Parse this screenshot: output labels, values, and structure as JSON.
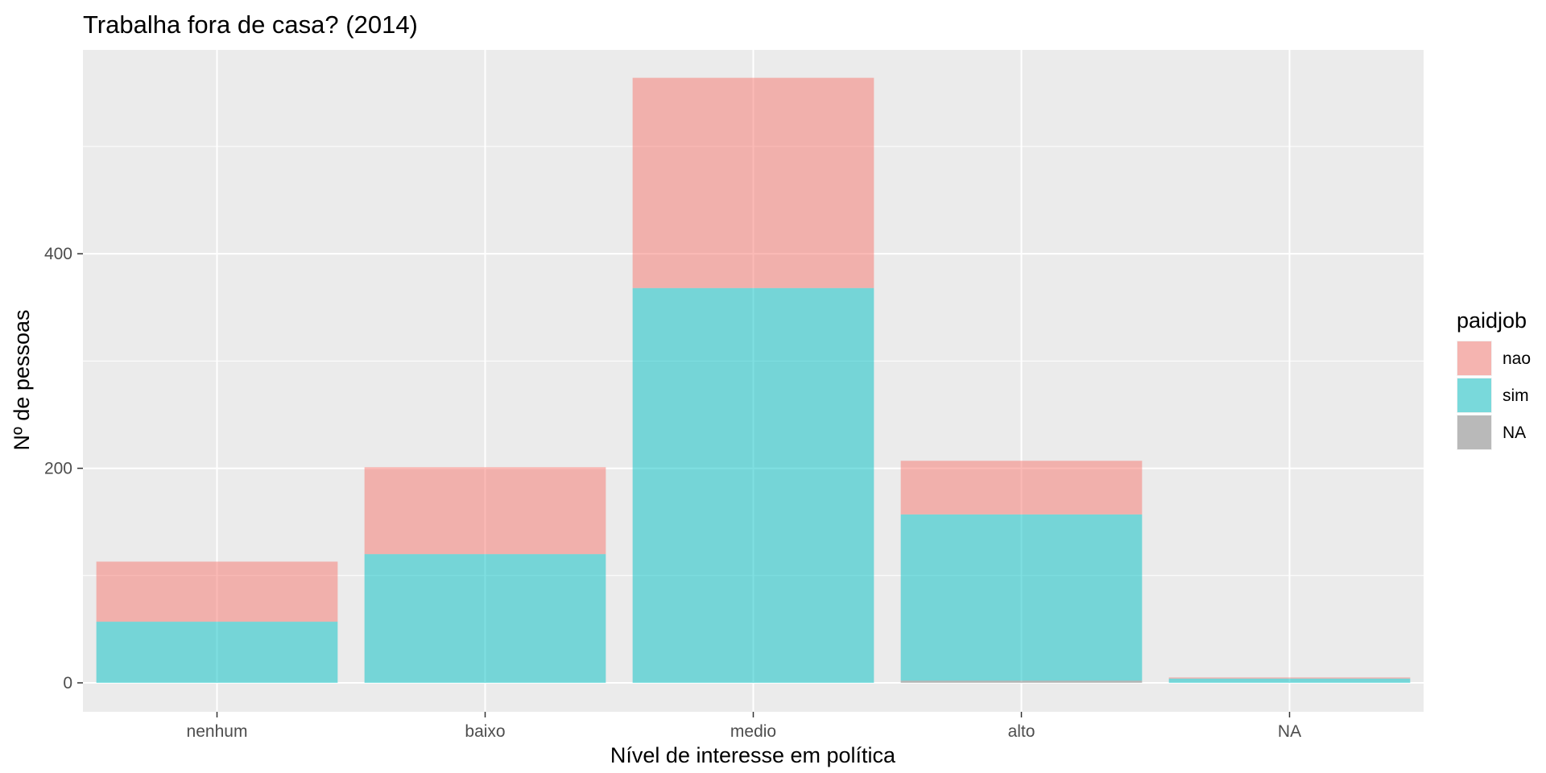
{
  "chart_data": {
    "type": "bar",
    "stacked": true,
    "title": "Trabalha fora de casa? (2014)",
    "xlabel": "Nível de interesse em política",
    "ylabel": "Nº de pessoas",
    "categories": [
      "nenhum",
      "baixo",
      "medio",
      "alto",
      "NA"
    ],
    "series": [
      {
        "name": "nao",
        "color": "#F8766D",
        "values": [
          56,
          81,
          196,
          50,
          1
        ]
      },
      {
        "name": "sim",
        "color": "#00BFC4",
        "values": [
          57,
          120,
          368,
          155,
          4
        ]
      },
      {
        "name": "NA",
        "color": "#7F7F7F",
        "values": [
          0,
          0,
          0,
          2,
          0
        ]
      }
    ],
    "ylim": [
      -27,
      590
    ],
    "yticks": [
      0,
      200,
      400
    ],
    "ytick_labels": [
      "0",
      "200",
      "400"
    ],
    "bar_opacity": 0.5,
    "grid": true,
    "panel_background": "#EBEBEB",
    "legend": {
      "title": "paidjob",
      "position": "right",
      "entries": [
        "nao",
        "sim",
        "NA"
      ]
    }
  }
}
